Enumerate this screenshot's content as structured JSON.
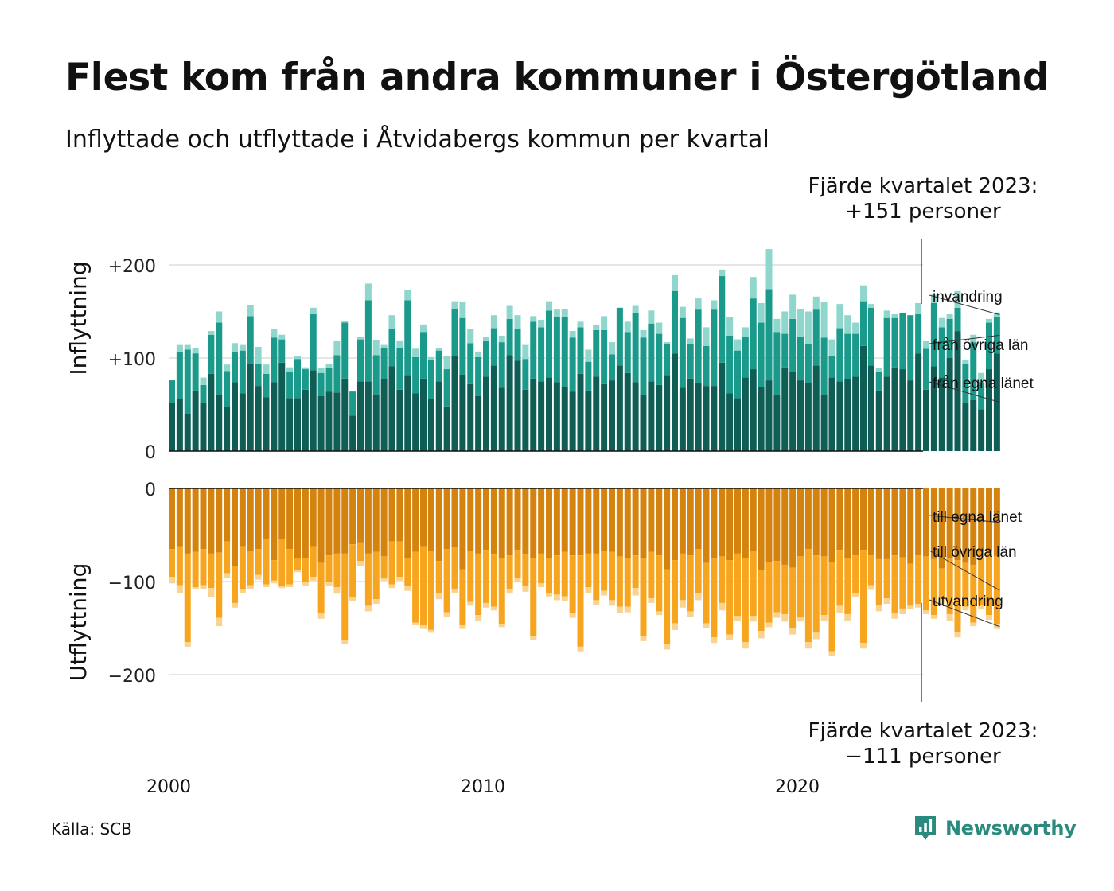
{
  "title": "Flest kom från andra kommuner i Östergötland",
  "subtitle": "Inflyttade och utflyttade i Åtvidabergs kommun per kvartal",
  "source": "Källa: SCB",
  "brand": "Newsworthy",
  "colors": {
    "in_egna": "#0f5e55",
    "in_ovriga": "#1a9a8b",
    "in_invandring": "#8fd6cc",
    "ut_egna": "#d4830f",
    "ut_ovriga": "#f7a51e",
    "ut_utvandring": "#f9d38f",
    "brand": "#2a8a7e",
    "grid": "#dddddd"
  },
  "chart_data": [
    {
      "type": "bar",
      "stacked": true,
      "ylabel": "Inflyttning",
      "ylim": [
        0,
        230
      ],
      "yticks": [
        {
          "value": 0,
          "label": "0"
        },
        {
          "value": 100,
          "label": "+100"
        },
        {
          "value": 200,
          "label": "+200"
        }
      ],
      "xticks": [
        {
          "value": 2000,
          "label": "2000"
        },
        {
          "value": 2010,
          "label": "2010"
        },
        {
          "value": 2020,
          "label": "2020"
        }
      ],
      "x_start": "2000 Q1",
      "annotation": [
        "Fjärde kvartalet 2023:",
        "+151 personer"
      ],
      "series": [
        {
          "name": "från egna länet",
          "values": [
            52,
            56,
            40,
            65,
            52,
            83,
            61,
            47,
            74,
            62,
            94,
            70,
            58,
            74,
            95,
            57,
            57,
            66,
            87,
            59,
            64,
            63,
            78,
            38,
            75,
            75,
            60,
            77,
            91,
            66,
            81,
            62,
            78,
            56,
            75,
            48,
            102,
            82,
            72,
            59,
            80,
            92,
            68,
            103,
            97,
            66,
            78,
            75,
            79,
            74,
            69,
            64,
            83,
            65,
            80,
            72,
            76,
            92,
            84,
            74,
            60,
            75,
            71,
            81,
            105,
            68,
            78,
            73,
            70,
            70,
            95,
            62,
            57,
            79,
            88,
            69,
            76,
            60,
            90,
            85,
            76,
            73,
            92,
            60,
            79,
            75,
            77,
            80,
            113,
            92,
            65,
            80,
            90,
            88,
            76,
            105,
            66,
            91,
            79,
            100,
            129,
            52,
            55,
            45,
            88,
            105
          ]
        },
        {
          "name": "från övriga län",
          "values": [
            24,
            50,
            69,
            40,
            19,
            42,
            77,
            39,
            32,
            46,
            51,
            24,
            25,
            48,
            25,
            28,
            42,
            22,
            60,
            25,
            25,
            40,
            60,
            26,
            45,
            87,
            43,
            34,
            40,
            45,
            81,
            39,
            50,
            42,
            33,
            40,
            51,
            61,
            44,
            42,
            38,
            40,
            49,
            39,
            34,
            33,
            61,
            58,
            72,
            70,
            75,
            58,
            50,
            31,
            50,
            58,
            28,
            62,
            44,
            74,
            62,
            62,
            55,
            34,
            67,
            75,
            37,
            79,
            43,
            82,
            93,
            62,
            51,
            44,
            76,
            69,
            98,
            68,
            36,
            57,
            47,
            42,
            60,
            62,
            23,
            57,
            49,
            46,
            48,
            62,
            20,
            63,
            53,
            60,
            70,
            42,
            44,
            68,
            54,
            42,
            25,
            42,
            62,
            29,
            50,
            39
          ]
        },
        {
          "name": "invandring",
          "values": [
            0,
            8,
            5,
            6,
            8,
            4,
            12,
            7,
            10,
            6,
            12,
            18,
            10,
            9,
            5,
            5,
            3,
            2,
            7,
            5,
            5,
            15,
            2,
            0,
            3,
            18,
            16,
            3,
            15,
            7,
            11,
            9,
            8,
            3,
            3,
            14,
            8,
            17,
            15,
            6,
            5,
            14,
            7,
            14,
            15,
            15,
            6,
            8,
            10,
            8,
            9,
            7,
            6,
            13,
            6,
            15,
            13,
            0,
            11,
            8,
            8,
            14,
            12,
            2,
            17,
            12,
            6,
            12,
            20,
            10,
            7,
            20,
            12,
            10,
            23,
            21,
            43,
            14,
            24,
            26,
            30,
            35,
            14,
            38,
            18,
            26,
            20,
            12,
            17,
            4,
            4,
            8,
            4,
            0,
            0,
            12,
            8,
            9,
            10,
            5,
            18,
            4,
            8,
            10,
            4,
            5
          ]
        }
      ]
    },
    {
      "type": "bar",
      "stacked": true,
      "ylabel": "Utflyttning",
      "ylim": [
        -230,
        0
      ],
      "yticks": [
        {
          "value": 0,
          "label": "0"
        },
        {
          "value": -100,
          "label": "−100"
        },
        {
          "value": -200,
          "label": "−200"
        }
      ],
      "xticks": [
        {
          "value": 2000,
          "label": "2000"
        },
        {
          "value": 2010,
          "label": "2010"
        },
        {
          "value": 2020,
          "label": "2020"
        }
      ],
      "x_start": "2000 Q1",
      "annotation": [
        "Fjärde kvartalet 2023:",
        "−111 personer"
      ],
      "series": [
        {
          "name": "till egna länet",
          "values": [
            -65,
            -62,
            -70,
            -68,
            -65,
            -70,
            -69,
            -57,
            -83,
            -62,
            -67,
            -65,
            -55,
            -77,
            -55,
            -65,
            -75,
            -75,
            -62,
            -80,
            -72,
            -70,
            -70,
            -60,
            -58,
            -70,
            -68,
            -73,
            -57,
            -57,
            -75,
            -68,
            -62,
            -67,
            -78,
            -65,
            -63,
            -87,
            -67,
            -70,
            -66,
            -71,
            -75,
            -72,
            -66,
            -71,
            -75,
            -70,
            -75,
            -72,
            -68,
            -72,
            -72,
            -70,
            -70,
            -67,
            -68,
            -73,
            -75,
            -72,
            -75,
            -68,
            -72,
            -87,
            -77,
            -70,
            -72,
            -65,
            -80,
            -75,
            -73,
            -77,
            -70,
            -75,
            -67,
            -88,
            -79,
            -78,
            -82,
            -85,
            -73,
            -65,
            -72,
            -73,
            -79,
            -66,
            -75,
            -72,
            -66,
            -72,
            -76,
            -76,
            -72,
            -74,
            -81,
            -72,
            -73,
            -76,
            -86,
            -75,
            -77,
            -80,
            -82,
            -68,
            -68,
            -73
          ]
        },
        {
          "name": "till övriga län",
          "values": [
            -30,
            -42,
            -95,
            -38,
            -39,
            -37,
            -70,
            -34,
            -40,
            -46,
            -37,
            -28,
            -48,
            -22,
            -50,
            -38,
            -13,
            -25,
            -33,
            -54,
            -28,
            -36,
            -93,
            -57,
            -20,
            -56,
            -51,
            -23,
            -46,
            -38,
            -30,
            -76,
            -85,
            -85,
            -34,
            -68,
            -45,
            -60,
            -55,
            -66,
            -57,
            -56,
            -71,
            -36,
            -30,
            -34,
            -84,
            -32,
            -37,
            -42,
            -48,
            -62,
            -98,
            -36,
            -50,
            -43,
            -52,
            -54,
            -52,
            -35,
            -84,
            -50,
            -60,
            -80,
            -68,
            -50,
            -60,
            -47,
            -65,
            -85,
            -50,
            -80,
            -67,
            -90,
            -70,
            -65,
            -65,
            -55,
            -53,
            -65,
            -65,
            -100,
            -83,
            -63,
            -96,
            -60,
            -60,
            -40,
            -100,
            -32,
            -49,
            -42,
            -62,
            -55,
            -45,
            -52,
            -58,
            -60,
            -32,
            -60,
            -77,
            -47,
            -62,
            -57,
            -68,
            -73
          ]
        },
        {
          "name": "utvandring",
          "values": [
            -7,
            -8,
            -5,
            -2,
            -4,
            -10,
            -9,
            -5,
            -5,
            -4,
            -4,
            -5,
            -3,
            -3,
            -2,
            -3,
            -2,
            -5,
            -4,
            -6,
            -5,
            -7,
            -4,
            -4,
            -5,
            -6,
            -5,
            -3,
            -4,
            -4,
            -5,
            -3,
            -4,
            -3,
            -7,
            -5,
            -4,
            -4,
            -4,
            -6,
            -5,
            -4,
            -3,
            -5,
            -5,
            -6,
            -4,
            -4,
            -4,
            -6,
            -5,
            -5,
            -5,
            -6,
            -5,
            -5,
            -6,
            -7,
            -6,
            -8,
            -5,
            -5,
            -4,
            -6,
            -7,
            -8,
            -6,
            -8,
            -5,
            -6,
            -8,
            -6,
            -5,
            -7,
            -6,
            -8,
            -5,
            -6,
            -8,
            -7,
            -5,
            -7,
            -7,
            -6,
            -5,
            -8,
            -7,
            -5,
            -6,
            -5,
            -7,
            -6,
            -6,
            -6,
            -4,
            -4,
            -4,
            -4,
            -6,
            -7,
            -6,
            -4,
            -4,
            -5,
            -5,
            -5
          ]
        }
      ]
    }
  ]
}
